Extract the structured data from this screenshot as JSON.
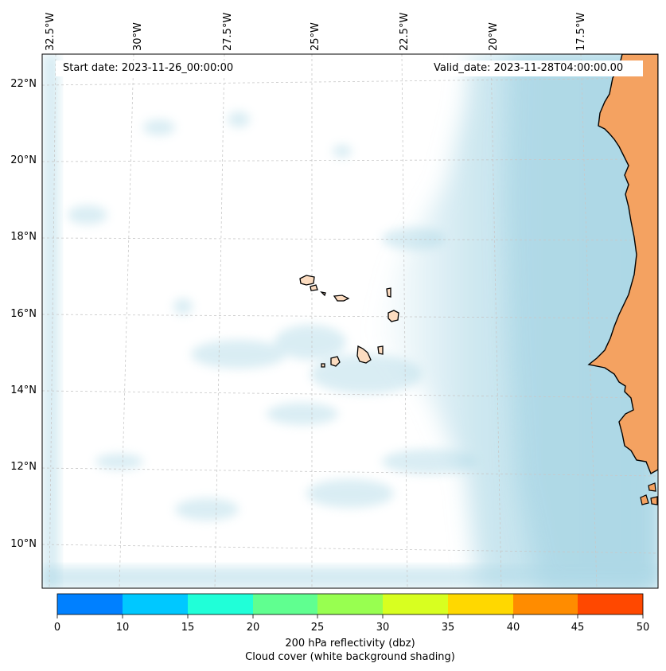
{
  "map": {
    "start_date_label": "Start date: 2023-11-26_00:00:00",
    "valid_date_label": "Valid_date: 2023-11-28T04:00:00.00",
    "longitude_labels": [
      "32.5°W",
      "30°W",
      "27.5°W",
      "25°W",
      "22.5°W",
      "20°W",
      "17.5°W"
    ],
    "latitude_labels": [
      "22°N",
      "20°N",
      "18°N",
      "16°N",
      "14°N",
      "12°N",
      "10°N"
    ],
    "colors": {
      "ocean_cloud": "#add8e6",
      "land_islands": "#fcdcc0",
      "land_mainland": "#f4a261",
      "coastline": "#000000",
      "gridline": "#c8c8c8"
    }
  },
  "colorbar": {
    "ticks": [
      "0",
      "10",
      "15",
      "20",
      "25",
      "30",
      "35",
      "40",
      "45",
      "50"
    ],
    "colors": [
      "#0080ff",
      "#00c8ff",
      "#20ffd8",
      "#60ff90",
      "#98ff50",
      "#d8ff20",
      "#ffd800",
      "#ff8c00",
      "#ff4800"
    ],
    "label_line1": "200 hPa reflectivity (dbz)",
    "label_line2": "Cloud cover (white background shading)"
  }
}
